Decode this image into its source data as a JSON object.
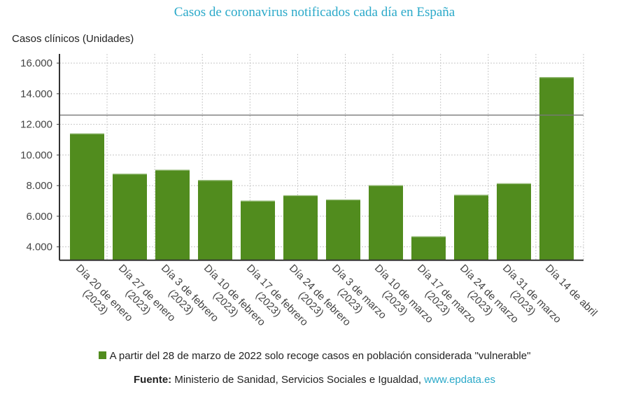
{
  "chart_data": {
    "type": "bar",
    "title": "Casos de coronavirus notificados cada día en España",
    "ylabel": "Casos clínicos (Unidades)",
    "xlabel": "",
    "categories": [
      [
        "Día 20 de enero",
        "(2023)"
      ],
      [
        "Día 27 de enero",
        "(2023)"
      ],
      [
        "Día 3 de febrero",
        "(2023)"
      ],
      [
        "Día 10 de febrero",
        "(2023)"
      ],
      [
        "Día 17 de febrero",
        "(2023)"
      ],
      [
        "Día 24 de febrero",
        "(2023)"
      ],
      [
        "Día 3 de marzo",
        "(2023)"
      ],
      [
        "Día 10 de marzo",
        "(2023)"
      ],
      [
        "Día 17 de marzo",
        "(2023)"
      ],
      [
        "Día 24 de marzo",
        "(2023)"
      ],
      [
        "Día 31 de marzo",
        "(2023)"
      ],
      [
        "Día 14 de abril"
      ]
    ],
    "values": [
      11410,
      8775,
      9037,
      8362,
      7016,
      7370,
      7094,
      8027,
      4689,
      7398,
      8150,
      15083
    ],
    "reference_line": 12604,
    "ylim": [
      3130,
      16600
    ],
    "yticks": [
      4000,
      6000,
      8000,
      10000,
      12000,
      14000,
      16000
    ],
    "ytick_labels": [
      "4.000",
      "6.000",
      "8.000",
      "10.000",
      "12.000",
      "14.000",
      "16.000"
    ],
    "grid": true,
    "bar_color": "#518c1e",
    "legend": {
      "position": "bottom",
      "label": "A partir del 28 de marzo de 2022 solo recoge casos en población considerada \"vulnerable\""
    }
  },
  "source": {
    "label": "Fuente:",
    "text": "Ministerio de Sanidad, Servicios Sociales e Igualdad,",
    "link": "www.epdata.es"
  },
  "colors": {
    "title": "#2aa9c9",
    "link": "#2aa9c9"
  }
}
